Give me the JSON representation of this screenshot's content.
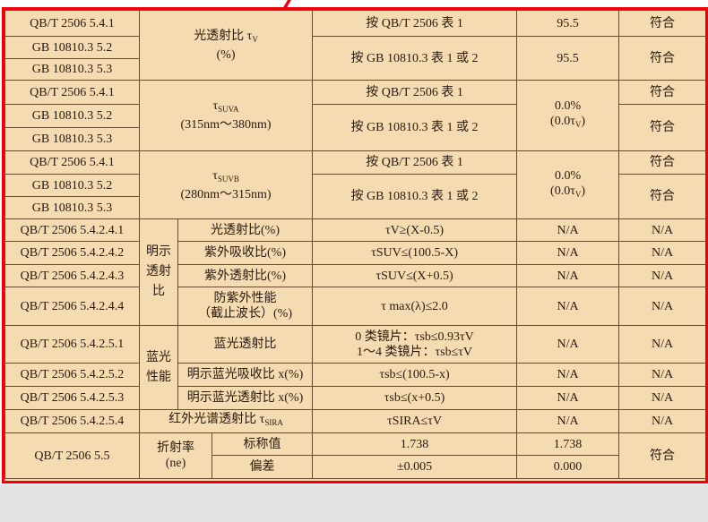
{
  "rows_std": [
    "QB/T 2506 5.4.1",
    "GB 10810.3 5.2",
    "GB 10810.3 5.3",
    "QB/T 2506 5.4.1",
    "GB 10810.3 5.2",
    "GB 10810.3 5.3",
    "QB/T 2506 5.4.1",
    "GB 10810.3 5.2",
    "GB 10810.3 5.3",
    "QB/T 2506 5.4.2.4.1",
    "QB/T 2506 5.4.2.4.2",
    "QB/T 2506 5.4.2.4.3",
    "QB/T 2506 5.4.2.4.4",
    "QB/T 2506 5.4.2.5.1",
    "QB/T 2506 5.4.2.5.2",
    "QB/T 2506 5.4.2.5.3",
    "QB/T 2506 5.4.2.5.4",
    "QB/T 2506 5.5"
  ],
  "tv": {
    "a": "光透射比 τ",
    "sub": "V",
    "b": "(%)"
  },
  "suva": {
    "a": "τ",
    "sub": "SUVA",
    "b": "(315nm～380nm)"
  },
  "suvb": {
    "a": "τ",
    "sub": "SUVB",
    "b": "(280nm～315nm)"
  },
  "method1": "按 QB/T 2506 表 1",
  "method2": "按 GB 10810.3 表 1 或 2",
  "val_tv": "95.5",
  "val_uv": {
    "a": "0.0%",
    "b": "(0.0τ",
    "sub": "V",
    "c": ")"
  },
  "pass": "符合",
  "na": "N/A",
  "g1": "明示透射比",
  "g2": "蓝光性能",
  "items": {
    "i1": "光透射比(%)",
    "i2": "紫外吸收比(%)",
    "i3": "紫外透射比(%)",
    "i4a": "防紫外性能",
    "i4b": "（截止波长）(%)",
    "i5": "蓝光透射比",
    "i6": "明示蓝光吸收比 x(%)",
    "i7": "明示蓝光透射比 x(%)",
    "i8": "红外光谱透射比 τ",
    "i8sub": "SIRA"
  },
  "req": {
    "r1": "τV≥(X-0.5)",
    "r2": "τSUV≤(100.5-X)",
    "r3": "τSUV≤(X+0.5)",
    "r4": "τ max(λ)≤2.0",
    "r5a": "0 类镜片：τsb≤0.93τV",
    "r5b": "1～4 类镜片：τsb≤τV",
    "r6": "τsb≤(100.5-x)",
    "r7": "τsb≤(x+0.5)",
    "r8": "τSIRA≤τV"
  },
  "ri": {
    "label": "折射率",
    "sym": "(ne)",
    "nominal": "标称值",
    "dev": "偏差",
    "req_nominal": "1.738",
    "req_dev": "±0.005",
    "res_nominal": "1.738",
    "res_dev": "0.000"
  }
}
